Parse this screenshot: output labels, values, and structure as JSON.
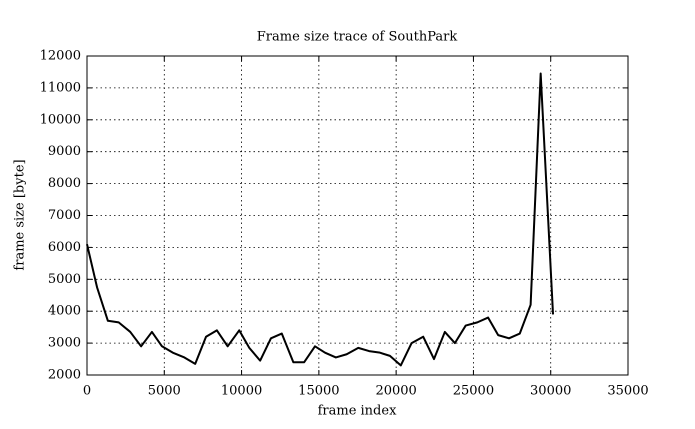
{
  "chart_data": {
    "type": "line",
    "title": "Frame size trace of SouthPark",
    "xlabel": "frame index",
    "ylabel": "frame size [byte]",
    "x": [
      0,
      650,
      1350,
      2050,
      2800,
      3500,
      4200,
      4850,
      5550,
      6300,
      7000,
      7700,
      8400,
      9100,
      9850,
      10500,
      11200,
      11900,
      12600,
      13350,
      14050,
      14750,
      15400,
      16100,
      16800,
      17550,
      18250,
      18950,
      19600,
      20300,
      21000,
      21750,
      22450,
      23150,
      23800,
      24500,
      25250,
      25950,
      26600,
      27300,
      28000,
      28700,
      29350,
      30150
    ],
    "series": [
      {
        "name": "SouthPark",
        "color": "#000000",
        "values": [
          6100,
          4750,
          3700,
          3650,
          3350,
          2900,
          3350,
          2900,
          2700,
          2550,
          2350,
          3200,
          3400,
          2900,
          3400,
          2850,
          2450,
          3150,
          3300,
          2400,
          2400,
          2900,
          2700,
          2550,
          2650,
          2850,
          2750,
          2700,
          2600,
          2300,
          3000,
          3200,
          2500,
          3350,
          3000,
          3550,
          3650,
          3800,
          3250,
          3150,
          3300,
          4200,
          11450,
          3900
        ]
      }
    ],
    "xlim": [
      0,
      35000
    ],
    "xticks": [
      0,
      5000,
      10000,
      15000,
      20000,
      25000,
      30000,
      35000
    ],
    "ylim": [
      2000,
      12000
    ],
    "yticks": [
      2000,
      3000,
      4000,
      5000,
      6000,
      7000,
      8000,
      9000,
      10000,
      11000,
      12000
    ],
    "grid": true
  }
}
